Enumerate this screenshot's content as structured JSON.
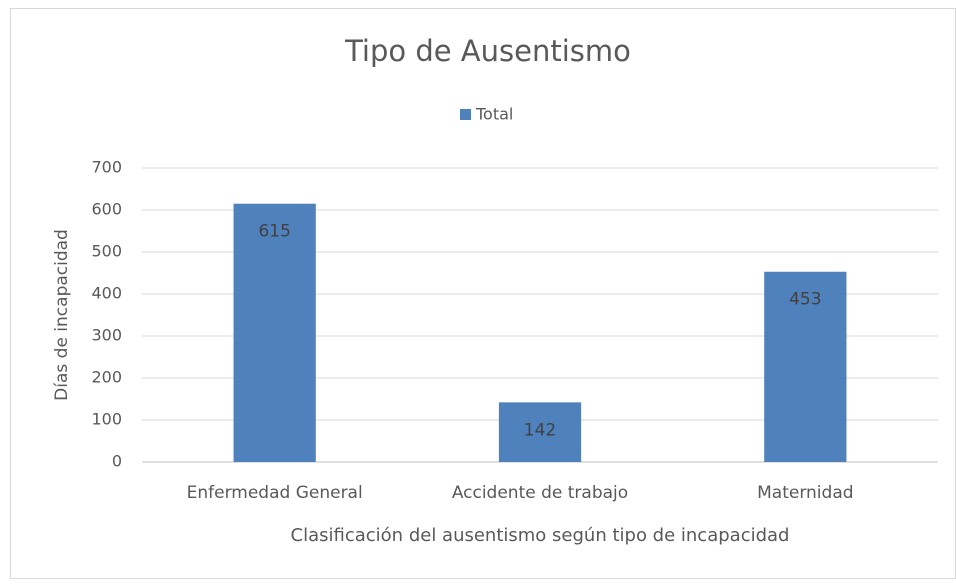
{
  "chart_data": {
    "type": "bar",
    "title": "Tipo de Ausentismo",
    "categories": [
      "Enfermedad General",
      "Accidente de trabajo",
      "Maternidad"
    ],
    "series": [
      {
        "name": "Total",
        "color": "#4f81bd",
        "values": [
          615,
          142,
          453
        ]
      }
    ],
    "ylim": [
      0,
      700
    ],
    "yticks": [
      0,
      100,
      200,
      300,
      400,
      500,
      600,
      700
    ],
    "ylabel": "Días de incapacidad",
    "xlabel": "Clasificación del ausentismo según tipo de incapacidad",
    "grid": true,
    "legend": "top"
  }
}
